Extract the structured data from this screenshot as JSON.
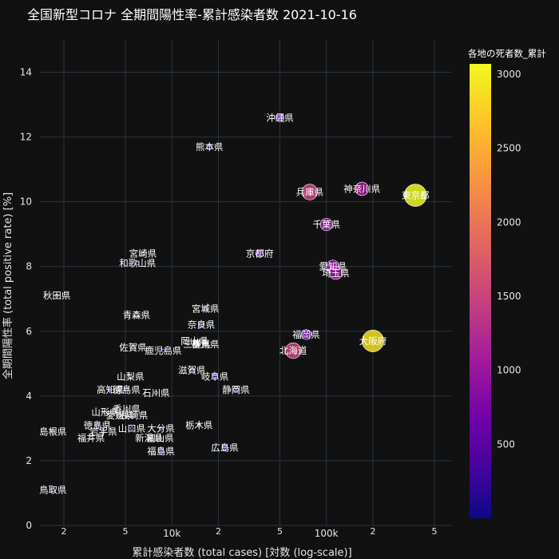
{
  "chart_data": {
    "type": "scatter",
    "title": "全国新型コロナ 全期間陽性率-累計感染者数 2021-10-16",
    "xlabel": "累計感染者数 (total cases) [対数 (log-scale)]",
    "ylabel": "全期間陽性率 (total positive rate) [%]",
    "x_scale": "log",
    "xlim": [
      1400,
      650000
    ],
    "ylim": [
      0,
      15
    ],
    "x_ticks": [
      {
        "value": 2000,
        "label": "2"
      },
      {
        "value": 5000,
        "label": "5"
      },
      {
        "value": 10000,
        "label": "10k"
      },
      {
        "value": 20000,
        "label": "2"
      },
      {
        "value": 50000,
        "label": "5"
      },
      {
        "value": 100000,
        "label": "100k"
      },
      {
        "value": 200000,
        "label": "2"
      },
      {
        "value": 500000,
        "label": "5"
      }
    ],
    "y_ticks": [
      0,
      2,
      4,
      6,
      8,
      10,
      12,
      14
    ],
    "grid": true,
    "colorbar": {
      "title": "各地の死者数_累計",
      "range": [
        0,
        3070
      ],
      "ticks": [
        500,
        1000,
        1500,
        2000,
        2500,
        3000
      ]
    },
    "points": [
      {
        "label": "東京都",
        "x": 377000,
        "y": 10.2,
        "deaths": 3070
      },
      {
        "label": "神奈川県",
        "x": 170000,
        "y": 10.4,
        "deaths": 1100
      },
      {
        "label": "兵庫県",
        "x": 78000,
        "y": 10.3,
        "deaths": 1500
      },
      {
        "label": "沖縄県",
        "x": 50000,
        "y": 12.6,
        "deaths": 390
      },
      {
        "label": "熊本県",
        "x": 17500,
        "y": 11.7,
        "deaths": 175
      },
      {
        "label": "千葉県",
        "x": 100000,
        "y": 9.3,
        "deaths": 950
      },
      {
        "label": "京都府",
        "x": 37000,
        "y": 8.4,
        "deaths": 350
      },
      {
        "label": "愛知県",
        "x": 110000,
        "y": 8.0,
        "deaths": 1000
      },
      {
        "label": "埼玉県",
        "x": 115000,
        "y": 7.8,
        "deaths": 1000
      },
      {
        "label": "宮崎県",
        "x": 6500,
        "y": 8.4,
        "deaths": 40
      },
      {
        "label": "和歌山県",
        "x": 6000,
        "y": 8.1,
        "deaths": 40
      },
      {
        "label": "秋田県",
        "x": 1800,
        "y": 7.1,
        "deaths": 20
      },
      {
        "label": "青森県",
        "x": 5900,
        "y": 6.5,
        "deaths": 40
      },
      {
        "label": "宮城県",
        "x": 16500,
        "y": 6.7,
        "deaths": 90
      },
      {
        "label": "奈良県",
        "x": 15500,
        "y": 6.2,
        "deaths": 130
      },
      {
        "label": "福岡県",
        "x": 74000,
        "y": 5.9,
        "deaths": 600
      },
      {
        "label": "大阪府",
        "x": 200000,
        "y": 5.7,
        "deaths": 2900
      },
      {
        "label": "北海道",
        "x": 61000,
        "y": 5.4,
        "deaths": 1500
      },
      {
        "label": "岡山県",
        "x": 14000,
        "y": 5.7,
        "deaths": 40
      },
      {
        "label": "群馬県",
        "x": 16500,
        "y": 5.6,
        "deaths": 60
      },
      {
        "label": "三重県",
        "x": 14500,
        "y": 5.6,
        "deaths": 110
      },
      {
        "label": "佐賀県",
        "x": 5600,
        "y": 5.5,
        "deaths": 20
      },
      {
        "label": "鹿児島県",
        "x": 8800,
        "y": 5.4,
        "deaths": 45
      },
      {
        "label": "山梨県",
        "x": 5400,
        "y": 4.6,
        "deaths": 20
      },
      {
        "label": "滋賀県",
        "x": 13500,
        "y": 4.8,
        "deaths": 50
      },
      {
        "label": "岐阜県",
        "x": 19000,
        "y": 4.6,
        "deaths": 200
      },
      {
        "label": "静岡県",
        "x": 26000,
        "y": 4.2,
        "deaths": 170
      },
      {
        "label": "高知県",
        "x": 4000,
        "y": 4.2,
        "deaths": 20
      },
      {
        "label": "徳島県",
        "x": 5100,
        "y": 4.2,
        "deaths": 20
      },
      {
        "label": "石川県",
        "x": 7900,
        "y": 4.1,
        "deaths": 40
      },
      {
        "label": "香川県",
        "x": 5100,
        "y": 3.6,
        "deaths": 20
      },
      {
        "label": "山形県",
        "x": 3700,
        "y": 3.5,
        "deaths": 20
      },
      {
        "label": "愛媛県",
        "x": 4600,
        "y": 3.4,
        "deaths": 25
      },
      {
        "label": "長崎県",
        "x": 5700,
        "y": 3.4,
        "deaths": 30
      },
      {
        "label": "徳島県",
        "x": 3300,
        "y": 3.1,
        "deaths": 20
      },
      {
        "label": "山口県",
        "x": 5500,
        "y": 3.0,
        "deaths": 35
      },
      {
        "label": "大分県",
        "x": 8500,
        "y": 3.0,
        "deaths": 30
      },
      {
        "label": "岩手県",
        "x": 3600,
        "y": 2.9,
        "deaths": 20
      },
      {
        "label": "福井県",
        "x": 3000,
        "y": 2.7,
        "deaths": 15
      },
      {
        "label": "新潟県",
        "x": 7100,
        "y": 2.7,
        "deaths": 30
      },
      {
        "label": "富山県",
        "x": 8400,
        "y": 2.7,
        "deaths": 30
      },
      {
        "label": "栃木県",
        "x": 15000,
        "y": 3.1,
        "deaths": 60
      },
      {
        "label": "広島県",
        "x": 22000,
        "y": 2.4,
        "deaths": 190
      },
      {
        "label": "福島県",
        "x": 8500,
        "y": 2.3,
        "deaths": 180
      },
      {
        "label": "島根県",
        "x": 1700,
        "y": 2.9,
        "deaths": 5
      },
      {
        "label": "鳥取県",
        "x": 1700,
        "y": 1.1,
        "deaths": 5
      }
    ]
  },
  "colors": {
    "background": "#111111",
    "grid": "#283442",
    "text": "#ffffff"
  }
}
